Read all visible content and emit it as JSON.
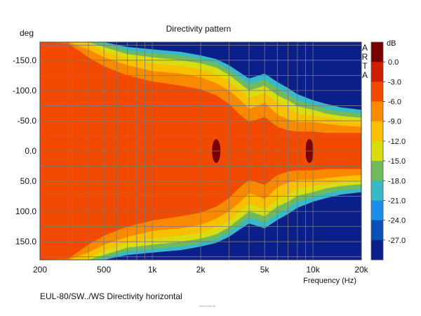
{
  "chart_data": {
    "type": "heatmap",
    "title": "Directivity pattern",
    "ylabel": "deg",
    "xlabel": "Frequency (Hz)",
    "x_scale": "log",
    "xlim": [
      200,
      20000
    ],
    "ylim": [
      -180,
      180
    ],
    "x_ticks": [
      200,
      500,
      1000,
      2000,
      5000,
      10000,
      20000
    ],
    "x_tick_labels": [
      "200",
      "500",
      "1k",
      "2k",
      "5k",
      "10k",
      "20k"
    ],
    "y_ticks": [
      -150,
      -100,
      -50,
      0,
      50,
      100,
      150
    ],
    "y_tick_labels": [
      "-150.0",
      "-100.0",
      "-50.0",
      "0.0",
      "50.0",
      "100.0",
      "150.0"
    ],
    "colorbar": {
      "unit": "dB",
      "levels": [
        0.0,
        -3.0,
        -6.0,
        -9.0,
        -12.0,
        -15.0,
        -18.0,
        -21.0,
        -24.0,
        -27.0
      ],
      "labels": [
        "0.0",
        "-3.0",
        "-6.0",
        "-9.0",
        "-12.0",
        "-15.0",
        "-18.0",
        "-21.0",
        "-24.0",
        "-27.0"
      ],
      "colors": [
        "#7a0000",
        "#d01f00",
        "#f24a00",
        "#f98a00",
        "#f8c000",
        "#d8dc10",
        "#6fba5c",
        "#38b9c8",
        "#1a8ee8",
        "#0a4eb8",
        "#0a1f8a"
      ]
    },
    "beamwidth_contours_deg": {
      "freq_hz": [
        200,
        300,
        400,
        500,
        700,
        1000,
        1500,
        2000,
        2500,
        3000,
        3500,
        4000,
        4500,
        5000,
        6000,
        7000,
        8000,
        10000,
        12000,
        15000,
        20000
      ],
      "minus_3db": [
        180,
        178,
        155,
        140,
        125,
        115,
        108,
        102,
        92,
        78,
        60,
        48,
        52,
        56,
        40,
        34,
        32,
        32,
        30,
        30,
        30
      ],
      "minus_6db": [
        180,
        180,
        168,
        155,
        142,
        132,
        128,
        122,
        112,
        100,
        85,
        70,
        74,
        80,
        60,
        52,
        48,
        48,
        45,
        42,
        40
      ],
      "minus_9db": [
        180,
        180,
        178,
        165,
        152,
        145,
        140,
        135,
        126,
        116,
        100,
        88,
        92,
        96,
        80,
        72,
        62,
        58,
        55,
        50,
        48
      ],
      "minus_12db": [
        180,
        180,
        180,
        172,
        160,
        155,
        150,
        145,
        138,
        126,
        112,
        100,
        104,
        108,
        92,
        84,
        74,
        68,
        62,
        58,
        55
      ],
      "minus_15db": [
        180,
        180,
        180,
        178,
        166,
        162,
        158,
        152,
        146,
        134,
        122,
        110,
        114,
        118,
        104,
        94,
        84,
        76,
        70,
        65,
        62
      ],
      "minus_18db": [
        180,
        180,
        180,
        180,
        172,
        168,
        164,
        158,
        152,
        142,
        130,
        120,
        124,
        128,
        114,
        104,
        94,
        84,
        78,
        72,
        68
      ]
    },
    "peaks": [
      {
        "freq_hz": 2500,
        "deg": 0,
        "db": 0.0
      },
      {
        "freq_hz": 9500,
        "deg": 0,
        "db": 0.0
      }
    ],
    "side_markers": [
      "A",
      "R",
      "T",
      "A"
    ]
  },
  "footer_text": "EUL-80/SW../WS  Directivity horizontal",
  "watermark": "www.tonsil.pl"
}
